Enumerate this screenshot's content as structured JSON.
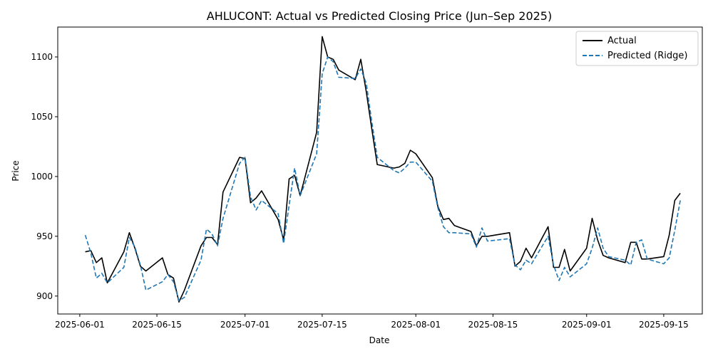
{
  "chart_data": {
    "type": "line",
    "title": "AHLUCONT: Actual vs Predicted Closing Price (Jun–Sep 2025)",
    "xlabel": "Date",
    "ylabel": "Price",
    "x_range": [
      "2025-05-28",
      "2025-09-22"
    ],
    "ylim": [
      885,
      1125
    ],
    "x_ticks": [
      "2025-06-01",
      "2025-06-15",
      "2025-07-01",
      "2025-07-15",
      "2025-08-01",
      "2025-08-15",
      "2025-09-01",
      "2025-09-15"
    ],
    "y_ticks": [
      900,
      950,
      1000,
      1050,
      1100
    ],
    "grid": false,
    "legend": "top-right",
    "dates": [
      "2025-06-02",
      "2025-06-03",
      "2025-06-04",
      "2025-06-05",
      "2025-06-06",
      "2025-06-09",
      "2025-06-10",
      "2025-06-11",
      "2025-06-12",
      "2025-06-13",
      "2025-06-16",
      "2025-06-17",
      "2025-06-18",
      "2025-06-19",
      "2025-06-20",
      "2025-06-23",
      "2025-06-24",
      "2025-06-25",
      "2025-06-26",
      "2025-06-27",
      "2025-06-30",
      "2025-07-01",
      "2025-07-02",
      "2025-07-03",
      "2025-07-04",
      "2025-07-07",
      "2025-07-08",
      "2025-07-09",
      "2025-07-10",
      "2025-07-11",
      "2025-07-14",
      "2025-07-15",
      "2025-07-16",
      "2025-07-17",
      "2025-07-18",
      "2025-07-21",
      "2025-07-22",
      "2025-07-23",
      "2025-07-24",
      "2025-07-25",
      "2025-07-28",
      "2025-07-29",
      "2025-07-30",
      "2025-07-31",
      "2025-08-01",
      "2025-08-04",
      "2025-08-05",
      "2025-08-06",
      "2025-08-07",
      "2025-08-08",
      "2025-08-11",
      "2025-08-12",
      "2025-08-13",
      "2025-08-14",
      "2025-08-18",
      "2025-08-19",
      "2025-08-20",
      "2025-08-21",
      "2025-08-22",
      "2025-08-25",
      "2025-08-26",
      "2025-08-27",
      "2025-08-28",
      "2025-08-29",
      "2025-09-01",
      "2025-09-02",
      "2025-09-03",
      "2025-09-04",
      "2025-09-05",
      "2025-09-08",
      "2025-09-09",
      "2025-09-10",
      "2025-09-11",
      "2025-09-12",
      "2025-09-15",
      "2025-09-16",
      "2025-09-17",
      "2025-09-18"
    ],
    "series": [
      {
        "name": "Actual",
        "color": "#000000",
        "dash": "solid",
        "values": [
          937,
          938,
          928,
          932,
          911,
          937,
          953,
          940,
          925,
          921,
          932,
          918,
          915,
          895,
          905,
          942,
          949,
          949,
          943,
          987,
          1016,
          1015,
          978,
          982,
          988,
          964,
          947,
          998,
          1001,
          984,
          1037,
          1117,
          1100,
          1098,
          1089,
          1081,
          1098,
          1071,
          1040,
          1010,
          1007,
          1008,
          1011,
          1022,
          1019,
          999,
          975,
          964,
          965,
          959,
          954,
          942,
          950,
          950,
          953,
          925,
          929,
          940,
          932,
          958,
          924,
          924,
          939,
          921,
          940,
          965,
          947,
          934,
          932,
          928,
          945,
          945,
          931,
          931,
          933,
          951,
          980,
          986
        ]
      },
      {
        "name": "Predicted (Ridge)",
        "color": "#1f77b4",
        "dash": "dashed",
        "values": [
          951,
          936,
          915,
          919,
          911,
          924,
          949,
          941,
          926,
          905,
          912,
          918,
          912,
          896,
          899,
          930,
          956,
          952,
          942,
          965,
          1011,
          1016,
          983,
          972,
          980,
          969,
          944,
          976,
          1007,
          984,
          1019,
          1086,
          1100,
          1096,
          1083,
          1082,
          1090,
          1078,
          1046,
          1016,
          1005,
          1003,
          1007,
          1012,
          1012,
          996,
          974,
          958,
          953,
          953,
          952,
          941,
          957,
          946,
          948,
          926,
          922,
          930,
          927,
          950,
          926,
          913,
          924,
          916,
          927,
          940,
          957,
          940,
          933,
          930,
          926,
          945,
          947,
          931,
          927,
          932,
          955,
          980
        ]
      }
    ]
  }
}
